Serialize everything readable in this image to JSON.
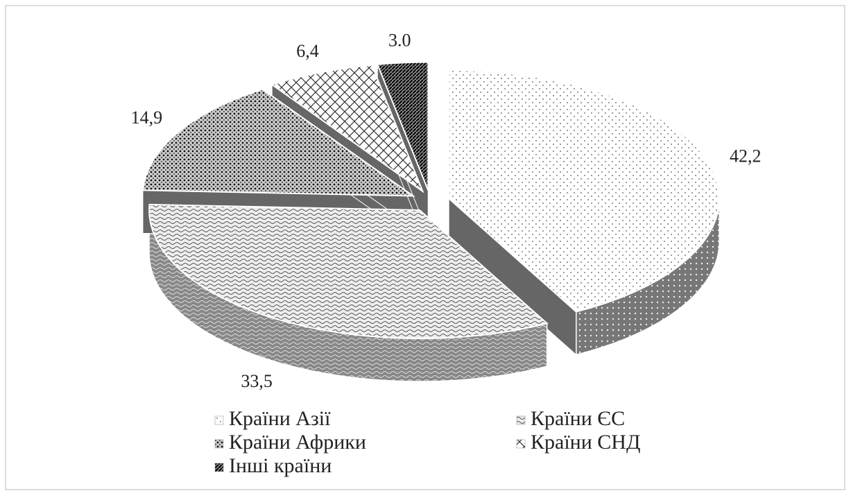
{
  "chart_data": {
    "type": "pie",
    "categories": [
      "Країни Азії",
      "Країни ЄС",
      "Країни Африки",
      "Країни СНД",
      "Інші країни"
    ],
    "values": [
      42.2,
      33.5,
      14.9,
      6.4,
      3.0
    ],
    "value_labels": [
      "42,2",
      "33,5",
      "14,9",
      "6,4",
      "3.0"
    ],
    "legend": "bottom"
  }
}
